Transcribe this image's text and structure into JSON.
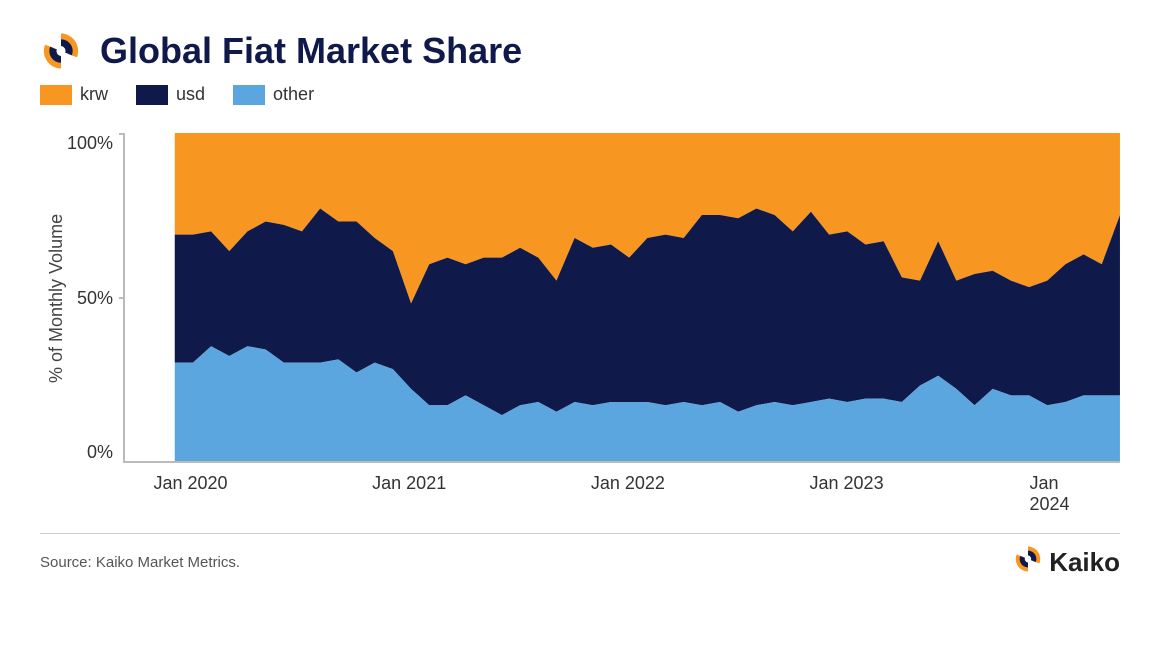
{
  "title": "Global Fiat Market Share",
  "legend": [
    {
      "label": "krw",
      "color": "#f79722"
    },
    {
      "label": "usd",
      "color": "#0f1a4a"
    },
    {
      "label": "other",
      "color": "#5ca6e0"
    }
  ],
  "chart": {
    "type": "area-stacked-100",
    "ylabel": "% of Monthly Volume",
    "ylim": [
      0,
      100
    ],
    "yticks": [
      0,
      50,
      100
    ],
    "ytick_labels": [
      "0%",
      "50%",
      "100%"
    ],
    "x_start_offset_pct": 5,
    "xticks": [
      {
        "pos": 5,
        "label": "Jan 2020"
      },
      {
        "pos": 27,
        "label": "Jan 2021"
      },
      {
        "pos": 49,
        "label": "Jan 2022"
      },
      {
        "pos": 71,
        "label": "Jan 2023"
      },
      {
        "pos": 93,
        "label": "Jan 2024"
      }
    ],
    "series": {
      "other": [
        30,
        30,
        35,
        32,
        35,
        34,
        30,
        30,
        30,
        31,
        27,
        30,
        28,
        22,
        17,
        17,
        20,
        17,
        14,
        17,
        18,
        15,
        18,
        17,
        18,
        18,
        18,
        17,
        18,
        17,
        18,
        15,
        17,
        18,
        17,
        18,
        19,
        18,
        19,
        19,
        18,
        23,
        26,
        22,
        17,
        22,
        20,
        20,
        17,
        18,
        20,
        20,
        20
      ],
      "usd": [
        39,
        39,
        35,
        32,
        35,
        39,
        42,
        40,
        47,
        42,
        46,
        38,
        36,
        26,
        43,
        45,
        40,
        45,
        48,
        48,
        44,
        40,
        50,
        48,
        48,
        44,
        50,
        52,
        50,
        58,
        57,
        59,
        60,
        57,
        53,
        58,
        50,
        52,
        47,
        48,
        38,
        32,
        41,
        33,
        40,
        36,
        35,
        33,
        38,
        42,
        43,
        40,
        55
      ],
      "krw": [
        31,
        31,
        30,
        36,
        30,
        27,
        28,
        30,
        23,
        27,
        27,
        32,
        36,
        52,
        40,
        38,
        40,
        38,
        38,
        35,
        38,
        45,
        32,
        35,
        34,
        38,
        32,
        31,
        32,
        25,
        25,
        26,
        23,
        25,
        30,
        24,
        31,
        30,
        34,
        33,
        44,
        45,
        33,
        45,
        43,
        42,
        45,
        47,
        45,
        40,
        37,
        40,
        25
      ]
    },
    "colors": {
      "krw": "#f79722",
      "usd": "#0f1a4a",
      "other": "#5ca6e0"
    },
    "background_color": "#ffffff",
    "axis_color": "#bbbbbb",
    "label_fontsize": 18,
    "title_fontsize": 36,
    "title_color": "#0f1a4a"
  },
  "source": "Source: Kaiko Market Metrics.",
  "brand": "Kaiko",
  "logo_colors": {
    "outer": "#f79722",
    "inner": "#0f1a4a"
  }
}
